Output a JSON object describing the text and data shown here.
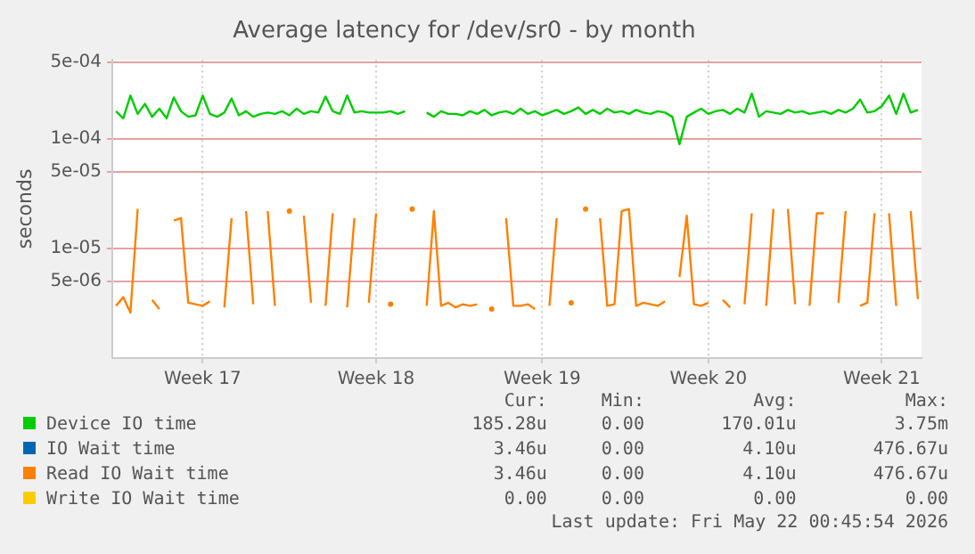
{
  "chart_data": {
    "type": "line",
    "title": "Average latency for /dev/sr0 - by month",
    "ylabel": "seconds",
    "log": true,
    "grid": true,
    "legend": "bottom",
    "marker": "none",
    "line_style": "solid",
    "categories": [
      null,
      null,
      null,
      null,
      null,
      null,
      null,
      null,
      null,
      null,
      null,
      null,
      "Week 17",
      null,
      null,
      null,
      null,
      null,
      null,
      null,
      null,
      null,
      null,
      null,
      null,
      null,
      null,
      null,
      null,
      null,
      null,
      null,
      null,
      null,
      null,
      null,
      "Week 18",
      null,
      null,
      null,
      null,
      null,
      null,
      null,
      null,
      null,
      null,
      null,
      null,
      null,
      null,
      null,
      null,
      null,
      null,
      null,
      null,
      null,
      null,
      "Week 19",
      null,
      null,
      null,
      null,
      null,
      null,
      null,
      null,
      null,
      null,
      null,
      null,
      null,
      null,
      null,
      null,
      null,
      null,
      null,
      null,
      null,
      null,
      "Week 20",
      null,
      null,
      null,
      null,
      null,
      null,
      null,
      null,
      null,
      null,
      null,
      null,
      null,
      null,
      null,
      null,
      null,
      null,
      null,
      null,
      null,
      null,
      null,
      "Week 21",
      null,
      null,
      null,
      null,
      null
    ],
    "ylim": [
      1e-06,
      0.00053
    ],
    "yticks": [
      {
        "value": 5e-06,
        "label": "5e-06"
      },
      {
        "value": 1e-05,
        "label": "1e-05"
      },
      {
        "value": 5e-05,
        "label": "5e-05"
      },
      {
        "value": 0.0001,
        "label": "1e-04"
      },
      {
        "value": 0.0005,
        "label": "5e-04"
      }
    ],
    "series": [
      {
        "name": "Device IO time",
        "color": "#00cc00",
        "values": [
          0.00018,
          0.000155,
          0.00025,
          0.00017,
          0.00021,
          0.00016,
          0.00019,
          0.000155,
          0.00024,
          0.00018,
          0.00016,
          0.000165,
          0.00025,
          0.00017,
          0.00016,
          0.000175,
          0.000235,
          0.000165,
          0.00018,
          0.00016,
          0.00017,
          0.000175,
          0.00017,
          0.00018,
          0.000165,
          0.00019,
          0.00017,
          0.00018,
          0.000175,
          0.000245,
          0.00018,
          0.00017,
          0.00025,
          0.000175,
          0.00018,
          0.000175,
          0.000175,
          0.000175,
          0.00018,
          0.00017,
          0.00018,
          null,
          null,
          0.000175,
          0.00016,
          0.00018,
          0.00017,
          0.00017,
          0.000165,
          0.00018,
          0.00017,
          0.000185,
          0.000165,
          0.000175,
          0.00018,
          0.00017,
          0.00019,
          0.00017,
          0.00018,
          0.000165,
          0.000175,
          0.000185,
          0.00017,
          0.00018,
          0.000195,
          0.00017,
          0.000185,
          0.00017,
          0.00019,
          0.000175,
          0.00018,
          0.00017,
          0.000185,
          0.000175,
          0.00017,
          0.00018,
          0.000175,
          0.00016,
          9e-05,
          0.00016,
          0.000175,
          0.00019,
          0.00017,
          0.00018,
          0.000185,
          0.00017,
          0.00019,
          0.000175,
          0.00026,
          0.00016,
          0.00018,
          0.000175,
          0.00017,
          0.000185,
          0.000175,
          0.00018,
          0.00017,
          0.000175,
          0.00018,
          0.00017,
          0.000185,
          0.000175,
          0.00019,
          0.00023,
          0.000175,
          0.00018,
          0.0002,
          0.00025,
          0.00017,
          0.00026,
          0.000175,
          0.000185
        ]
      },
      {
        "name": "IO Wait time",
        "color": "#0066b3",
        "values": [
          null,
          null,
          null,
          null,
          null,
          null,
          null,
          null,
          null,
          null,
          null,
          null,
          null,
          null,
          null,
          null,
          null,
          null,
          null,
          null,
          null,
          null,
          null,
          null,
          null,
          null,
          null,
          null,
          null,
          null,
          null,
          null,
          null,
          null,
          null,
          null,
          null,
          null,
          null,
          null,
          null,
          null,
          null,
          null,
          null,
          null,
          null,
          null,
          null,
          null,
          null,
          null,
          null,
          null,
          null,
          null,
          null,
          null,
          null,
          null,
          null,
          null,
          null,
          null,
          null,
          null,
          null,
          null,
          null,
          null,
          null,
          null,
          null,
          null,
          null,
          null,
          null,
          null,
          null,
          null,
          null,
          null,
          null,
          null,
          null,
          null,
          null,
          null,
          null,
          null,
          null,
          null,
          null,
          null,
          null,
          null,
          null,
          null,
          null,
          null,
          null,
          null,
          null,
          null,
          null,
          null,
          null,
          null,
          null,
          null,
          null,
          null
        ]
      },
      {
        "name": "Read IO Wait time",
        "color": "#ff8000",
        "values": [
          3e-06,
          3.6e-06,
          2.6e-06,
          2.3e-05,
          null,
          3.4e-06,
          2.8e-06,
          null,
          1.8e-05,
          1.9e-05,
          3.2e-06,
          3.1e-06,
          3e-06,
          3.3e-06,
          null,
          2.9e-06,
          1.9e-05,
          null,
          2.2e-05,
          3.1e-06,
          null,
          2.2e-05,
          3e-06,
          null,
          2.2e-05,
          null,
          2e-05,
          3.2e-06,
          null,
          3e-06,
          2.1e-05,
          null,
          2.9e-06,
          1.9e-05,
          null,
          3.2e-06,
          2.1e-05,
          null,
          3.1e-06,
          null,
          null,
          2.3e-05,
          null,
          3e-06,
          2.2e-05,
          3e-06,
          3.2e-06,
          2.9e-06,
          3.1e-06,
          3e-06,
          3.1e-06,
          null,
          2.8e-06,
          null,
          1.9e-05,
          3e-06,
          3e-06,
          3.1e-06,
          2.8e-06,
          null,
          3e-06,
          1.9e-05,
          null,
          3.2e-06,
          null,
          2.3e-05,
          null,
          1.9e-05,
          3e-06,
          3.1e-06,
          2.2e-05,
          2.3e-05,
          3e-06,
          3.2e-06,
          3.1e-06,
          3e-06,
          3.3e-06,
          null,
          5.5e-06,
          2e-05,
          3.1e-06,
          3e-06,
          3.2e-06,
          null,
          3.4e-06,
          2.9e-06,
          null,
          3.1e-06,
          2.1e-05,
          null,
          3e-06,
          2.3e-05,
          null,
          2.3e-05,
          3.1e-06,
          null,
          3e-06,
          2.1e-05,
          2.1e-05,
          null,
          3.2e-06,
          2.2e-05,
          null,
          3e-06,
          3.2e-06,
          2.1e-05,
          null,
          2.1e-05,
          3e-06,
          null,
          2.2e-05,
          3.46e-06
        ]
      },
      {
        "name": "Write IO Wait time",
        "color": "#ffcc00",
        "values": [
          null,
          null,
          null,
          null,
          null,
          null,
          null,
          null,
          null,
          null,
          null,
          null,
          null,
          null,
          null,
          null,
          null,
          null,
          null,
          null,
          null,
          null,
          null,
          null,
          null,
          null,
          null,
          null,
          null,
          null,
          null,
          null,
          null,
          null,
          null,
          null,
          null,
          null,
          null,
          null,
          null,
          null,
          null,
          null,
          null,
          null,
          null,
          null,
          null,
          null,
          null,
          null,
          null,
          null,
          null,
          null,
          null,
          null,
          null,
          null,
          null,
          null,
          null,
          null,
          null,
          null,
          null,
          null,
          null,
          null,
          null,
          null,
          null,
          null,
          null,
          null,
          null,
          null,
          null,
          null,
          null,
          null,
          null,
          null,
          null,
          null,
          null,
          null,
          null,
          null,
          null,
          null,
          null,
          null,
          null,
          null,
          null,
          null,
          null,
          null,
          null,
          null,
          null,
          null,
          null,
          null,
          null,
          null,
          null,
          null,
          null,
          null
        ]
      }
    ],
    "annotations": [
      "Cur:",
      "Min:",
      "Avg:",
      "Max:",
      "185.28u",
      "0.00",
      "170.01u",
      "3.75m",
      "3.46u",
      "0.00",
      "4.10u",
      "476.67u",
      "3.46u",
      "0.00",
      "4.10u",
      "476.67u",
      "0.00",
      "0.00",
      "0.00",
      "0.00",
      "Last update: Fri May 22 00:45:54 2026"
    ]
  }
}
